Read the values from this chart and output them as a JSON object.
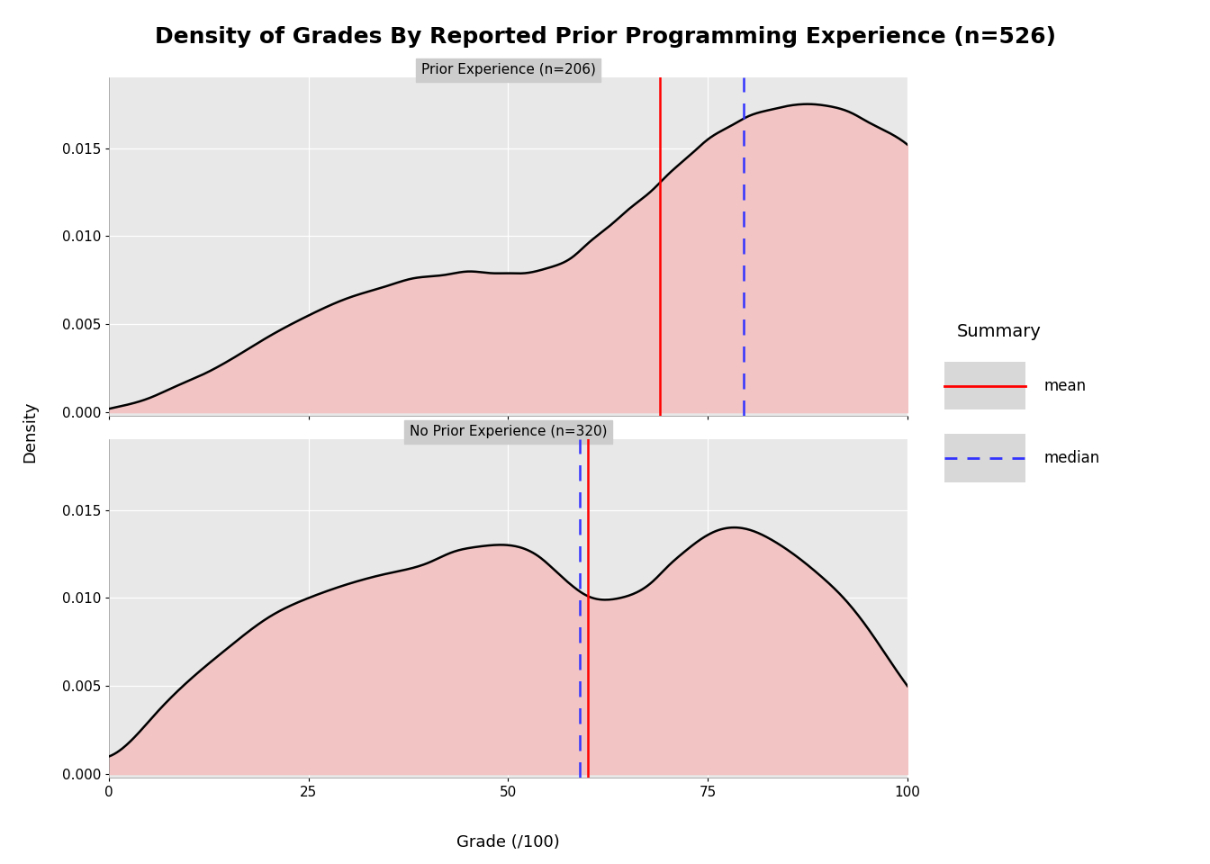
{
  "title": "Density of Grades By Reported Prior Programming Experience (n=526)",
  "title_fontsize": 18,
  "title_fontweight": "bold",
  "xlabel": "Grade (/100)",
  "ylabel": "Density",
  "panel1_title": "Prior Experience (n=206)",
  "panel2_title": "No Prior Experience (n=320)",
  "panel_title_fontsize": 11,
  "axis_label_fontsize": 13,
  "tick_fontsize": 11,
  "xlim": [
    0,
    100
  ],
  "xticks": [
    0,
    25,
    50,
    75,
    100
  ],
  "ylim": [
    -0.0002,
    0.019
  ],
  "yticks": [
    0.0,
    0.005,
    0.01,
    0.015
  ],
  "prior_mean": 69.0,
  "prior_median": 79.5,
  "noprior_mean": 60.0,
  "noprior_median": 59.0,
  "fill_color": "#f2c4c4",
  "line_color": "#000000",
  "mean_color": "#ff0000",
  "median_color": "#3333ff",
  "bg_color": "#e8e8e8",
  "panel_header_color": "#cccccc",
  "grid_color": "#ffffff",
  "legend_bg_color": "#ebebeb",
  "legend_title": "Summary",
  "legend_fontsize": 12,
  "legend_title_fontsize": 14,
  "prior_x": [
    0,
    2,
    5,
    8,
    12,
    16,
    20,
    25,
    30,
    35,
    38,
    42,
    45,
    48,
    50,
    52,
    55,
    58,
    60,
    63,
    65,
    68,
    70,
    73,
    75,
    78,
    80,
    83,
    85,
    88,
    90,
    93,
    95,
    98,
    100
  ],
  "prior_y": [
    0.0002,
    0.0004,
    0.0008,
    0.0014,
    0.0022,
    0.0032,
    0.0043,
    0.0055,
    0.0065,
    0.0072,
    0.0076,
    0.0078,
    0.008,
    0.0079,
    0.0079,
    0.0079,
    0.0082,
    0.0088,
    0.0096,
    0.0107,
    0.0115,
    0.0126,
    0.0135,
    0.0147,
    0.0155,
    0.0163,
    0.0168,
    0.0172,
    0.0174,
    0.0175,
    0.0174,
    0.017,
    0.0165,
    0.0158,
    0.0152
  ],
  "noprior_x": [
    0,
    3,
    6,
    10,
    15,
    20,
    25,
    30,
    35,
    40,
    43,
    46,
    48,
    50,
    52,
    54,
    56,
    58,
    60,
    62,
    64,
    66,
    68,
    70,
    72,
    74,
    76,
    78,
    80,
    83,
    86,
    89,
    92,
    95,
    98,
    100
  ],
  "noprior_y": [
    0.001,
    0.002,
    0.0035,
    0.0053,
    0.0072,
    0.0089,
    0.01,
    0.0108,
    0.0114,
    0.012,
    0.0126,
    0.0129,
    0.013,
    0.013,
    0.0128,
    0.0123,
    0.0115,
    0.0107,
    0.0101,
    0.0099,
    0.01,
    0.0103,
    0.0109,
    0.0118,
    0.0126,
    0.0133,
    0.0138,
    0.014,
    0.0139,
    0.0133,
    0.0124,
    0.0113,
    0.01,
    0.0083,
    0.0063,
    0.005
  ]
}
